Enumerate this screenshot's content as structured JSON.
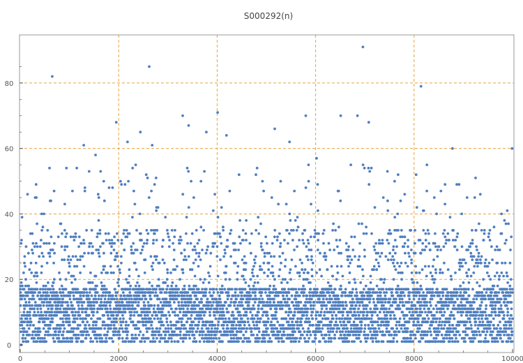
{
  "chart_data": {
    "type": "scatter",
    "title": "S000292(n)",
    "xlabel": "",
    "ylabel": "",
    "xlim": [
      0,
      10000
    ],
    "ylim": [
      0,
      90
    ],
    "x_ticks": [
      0,
      2000,
      4000,
      6000,
      8000,
      10000
    ],
    "y_ticks": [
      0,
      20,
      40,
      60,
      80
    ],
    "x_tick_labels": [
      "0",
      "2000",
      "4000",
      "6000",
      "8000",
      "10000"
    ],
    "y_tick_labels": [
      "0",
      "20",
      "40",
      "60",
      "80"
    ],
    "grid": true,
    "grid_x": [
      2000,
      4000,
      6000,
      8000
    ],
    "grid_y": [
      20,
      40,
      60,
      80
    ],
    "colors": {
      "points": "#4f7fbf",
      "grid": "#e8a23a",
      "axis": "#555555"
    },
    "highlighted_points": [
      {
        "x": 650,
        "y": 82
      },
      {
        "x": 2620,
        "y": 85
      },
      {
        "x": 2680,
        "y": 61
      },
      {
        "x": 1950,
        "y": 68
      },
      {
        "x": 2180,
        "y": 62
      },
      {
        "x": 2440,
        "y": 65
      },
      {
        "x": 3300,
        "y": 70
      },
      {
        "x": 3420,
        "y": 67
      },
      {
        "x": 3780,
        "y": 65
      },
      {
        "x": 4010,
        "y": 71
      },
      {
        "x": 4190,
        "y": 64
      },
      {
        "x": 5170,
        "y": 66
      },
      {
        "x": 5470,
        "y": 62
      },
      {
        "x": 5800,
        "y": 70
      },
      {
        "x": 6020,
        "y": 57
      },
      {
        "x": 6510,
        "y": 70
      },
      {
        "x": 6850,
        "y": 70
      },
      {
        "x": 6960,
        "y": 91
      },
      {
        "x": 7080,
        "y": 68
      },
      {
        "x": 8140,
        "y": 79
      },
      {
        "x": 8780,
        "y": 60
      },
      {
        "x": 9990,
        "y": 60
      },
      {
        "x": 20,
        "y": 0
      },
      {
        "x": 1290,
        "y": 61
      },
      {
        "x": 1530,
        "y": 58
      },
      {
        "x": 1400,
        "y": 53
      }
    ],
    "series": [
      {
        "generation_note": "",
        "dense_band_max": 17,
        "mid_band_max": 36,
        "upper_band_max": 56,
        "n_points": 10000
      }
    ]
  }
}
